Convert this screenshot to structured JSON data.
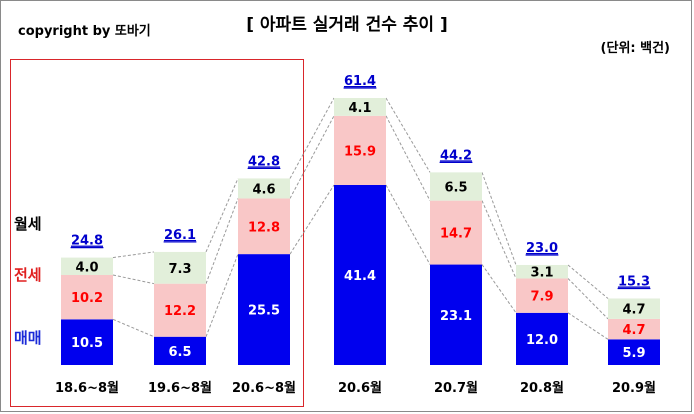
{
  "header": {
    "copyright": "copyright by 또바기",
    "title": "[ 아파트 실거래 건수 추이 ]",
    "unit": "(단위: 백건)"
  },
  "legend_labels": {
    "monthly_rent": "월세",
    "jeonse": "전세",
    "sale": "매매"
  },
  "colors": {
    "sale": "#0000ee",
    "jeonse": "#f9c7c7",
    "monthly_rent": "#e2efda",
    "sale_label": "#ffffff",
    "jeonse_label": "#ff0000",
    "monthly_label": "#000000",
    "total_label": "#0000cc",
    "highlight_border": "#d9262b"
  },
  "chart_data": {
    "type": "bar",
    "stacked": true,
    "categories": [
      "18.6~8월",
      "19.6~8월",
      "20.6~8월",
      "20.6월",
      "20.7월",
      "20.8월",
      "20.9월"
    ],
    "series": [
      {
        "name": "매매",
        "values": [
          10.5,
          6.5,
          25.5,
          41.4,
          23.1,
          12.0,
          5.9
        ]
      },
      {
        "name": "전세",
        "values": [
          10.2,
          12.2,
          12.8,
          15.9,
          14.7,
          7.9,
          4.7
        ]
      },
      {
        "name": "월세",
        "values": [
          4.0,
          7.3,
          4.6,
          4.1,
          6.5,
          3.1,
          4.7
        ]
      }
    ],
    "totals": [
      24.8,
      26.1,
      42.8,
      61.4,
      44.2,
      23.0,
      15.3
    ],
    "title": "[ 아파트 실거래 건수 추이 ]",
    "ylim": [
      0,
      61.4
    ],
    "grid": false,
    "legend": "left",
    "connector_lines": true,
    "highlighted_categories": [
      "18.6~8월",
      "19.6~8월",
      "20.6~8월"
    ]
  }
}
